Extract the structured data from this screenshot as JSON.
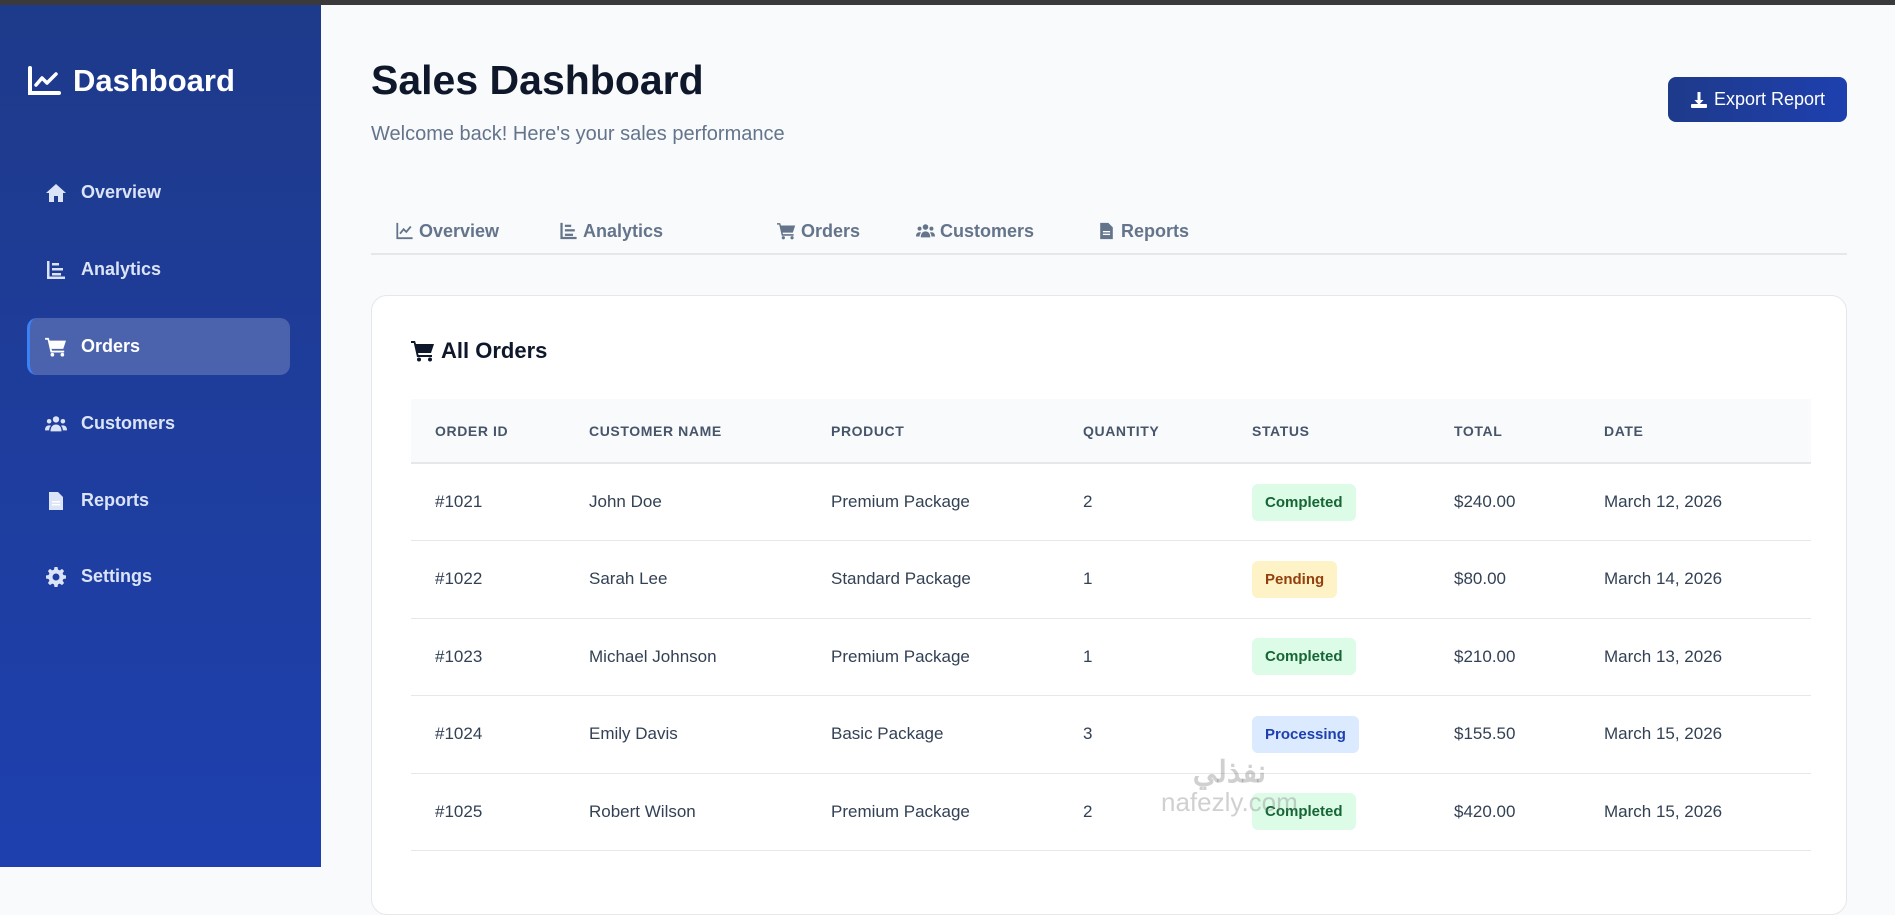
{
  "sidebar": {
    "logo": "Dashboard",
    "items": [
      {
        "label": "Overview",
        "icon": "home-icon",
        "active": false
      },
      {
        "label": "Analytics",
        "icon": "bar-chart-icon",
        "active": false
      },
      {
        "label": "Orders",
        "icon": "cart-icon",
        "active": true
      },
      {
        "label": "Customers",
        "icon": "users-icon",
        "active": false
      },
      {
        "label": "Reports",
        "icon": "file-icon",
        "active": false
      },
      {
        "label": "Settings",
        "icon": "gear-icon",
        "active": false
      }
    ]
  },
  "header": {
    "title": "Sales Dashboard",
    "subtitle": "Welcome back! Here's your sales performance",
    "export_label": "Export Report"
  },
  "tabs": [
    {
      "label": "Overview",
      "icon": "line-chart-icon"
    },
    {
      "label": "Analytics",
      "icon": "bar-chart-icon"
    },
    {
      "label": "Orders",
      "icon": "cart-icon"
    },
    {
      "label": "Customers",
      "icon": "users-icon"
    },
    {
      "label": "Reports",
      "icon": "file-icon"
    }
  ],
  "orders": {
    "title": "All Orders",
    "columns": [
      "ORDER ID",
      "CUSTOMER NAME",
      "PRODUCT",
      "QUANTITY",
      "STATUS",
      "TOTAL",
      "DATE"
    ],
    "rows": [
      {
        "id": "#1021",
        "customer": "John Doe",
        "product": "Premium Package",
        "quantity": "2",
        "status": "Completed",
        "total": "$240.00",
        "date": "March 12, 2026"
      },
      {
        "id": "#1022",
        "customer": "Sarah Lee",
        "product": "Standard Package",
        "quantity": "1",
        "status": "Pending",
        "total": "$80.00",
        "date": "March 14, 2026"
      },
      {
        "id": "#1023",
        "customer": "Michael Johnson",
        "product": "Premium Package",
        "quantity": "1",
        "status": "Completed",
        "total": "$210.00",
        "date": "March 13, 2026"
      },
      {
        "id": "#1024",
        "customer": "Emily Davis",
        "product": "Basic Package",
        "quantity": "3",
        "status": "Processing",
        "total": "$155.50",
        "date": "March 15, 2026"
      },
      {
        "id": "#1025",
        "customer": "Robert Wilson",
        "product": "Premium Package",
        "quantity": "2",
        "status": "Completed",
        "total": "$420.00",
        "date": "March 15, 2026"
      }
    ]
  },
  "status_colors": {
    "Completed": {
      "bg": "#dcfce7",
      "fg": "#166534"
    },
    "Pending": {
      "bg": "#fef3c7",
      "fg": "#92400e"
    },
    "Processing": {
      "bg": "#dbeafe",
      "fg": "#1e40af"
    }
  },
  "colors": {
    "sidebar": "#1e3a8a",
    "accent": "#3b82f6"
  },
  "watermark": {
    "arabic": "نفذلي",
    "latin": "nafezly.com"
  }
}
